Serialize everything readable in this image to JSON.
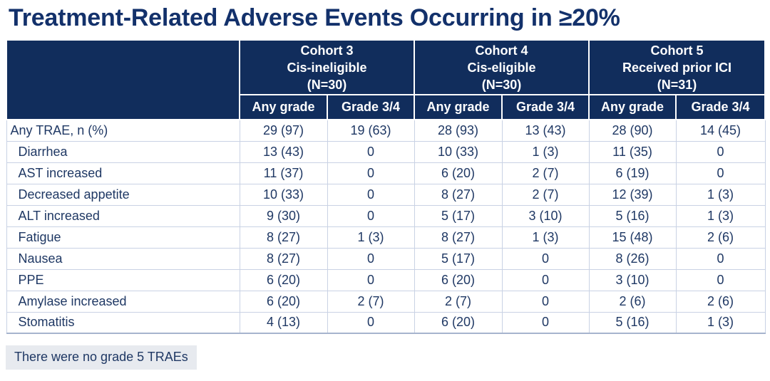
{
  "title": "Treatment-Related Adverse Events Occurring in ≥20%",
  "table": {
    "cohorts": [
      {
        "line1": "Cohort 3",
        "line2": "Cis-ineligible",
        "line3": "(N=30)"
      },
      {
        "line1": "Cohort 4",
        "line2": "Cis-eligible",
        "line3": "(N=30)"
      },
      {
        "line1": "Cohort 5",
        "line2": "Received prior ICI",
        "line3": "(N=31)"
      }
    ],
    "subheaders": [
      "Any grade",
      "Grade 3/4"
    ],
    "rows": [
      {
        "label": "Any TRAE, n (%)",
        "indent": false,
        "values": [
          "29 (97)",
          "19 (63)",
          "28 (93)",
          "13 (43)",
          "28 (90)",
          "14 (45)"
        ]
      },
      {
        "label": "Diarrhea",
        "indent": true,
        "values": [
          "13 (43)",
          "0",
          "10 (33)",
          "1 (3)",
          "11 (35)",
          "0"
        ]
      },
      {
        "label": "AST increased",
        "indent": true,
        "values": [
          "11 (37)",
          "0",
          "6 (20)",
          "2 (7)",
          "6 (19)",
          "0"
        ]
      },
      {
        "label": "Decreased appetite",
        "indent": true,
        "values": [
          "10 (33)",
          "0",
          "8 (27)",
          "2 (7)",
          "12 (39)",
          "1 (3)"
        ]
      },
      {
        "label": "ALT increased",
        "indent": true,
        "values": [
          "9 (30)",
          "0",
          "5 (17)",
          "3 (10)",
          "5 (16)",
          "1 (3)"
        ]
      },
      {
        "label": "Fatigue",
        "indent": true,
        "values": [
          "8 (27)",
          "1 (3)",
          "8 (27)",
          "1 (3)",
          "15 (48)",
          "2 (6)"
        ]
      },
      {
        "label": "Nausea",
        "indent": true,
        "values": [
          "8 (27)",
          "0",
          "5 (17)",
          "0",
          "8 (26)",
          "0"
        ]
      },
      {
        "label": "PPE",
        "indent": true,
        "values": [
          "6 (20)",
          "0",
          "6 (20)",
          "0",
          "3 (10)",
          "0"
        ]
      },
      {
        "label": "Amylase increased",
        "indent": true,
        "values": [
          "6 (20)",
          "2 (7)",
          "2 (7)",
          "0",
          "2 (6)",
          "2 (6)"
        ]
      },
      {
        "label": "Stomatitis",
        "indent": true,
        "values": [
          "4 (13)",
          "0",
          "6 (20)",
          "0",
          "5 (16)",
          "1 (3)"
        ]
      }
    ]
  },
  "footnote": "There were no grade 5 TRAEs",
  "colors": {
    "header-bg": "#112D5C",
    "header-text": "#FFFFFF",
    "body-text": "#1F3864",
    "title-text": "#13316B",
    "grid-line": "#C9D2E4",
    "table-bottom-line": "#A6B4CE",
    "footnote-bg": "#E7EAEF"
  }
}
